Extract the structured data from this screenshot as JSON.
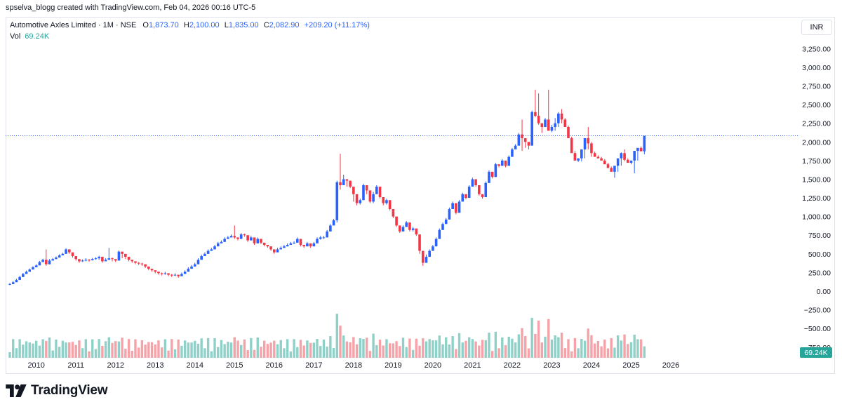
{
  "credit": "spselva_blogg created with TradingView.com, Feb 04, 2026 00:16 UTC-5",
  "legend": {
    "symbol": "Automotive Axles Limited · 1M · NSE",
    "o_label": "O",
    "o_value": "1,873.70",
    "h_label": "H",
    "h_value": "2,100.00",
    "l_label": "L",
    "l_value": "1,835.00",
    "c_label": "C",
    "c_value": "2,082.90",
    "change": "+209.20 (+11.17%)",
    "vol_label": "Vol",
    "vol_value": "69.24K"
  },
  "currency": "INR",
  "brand": "TradingView",
  "colors": {
    "up": "#2962ff",
    "down": "#f23645",
    "vol_up": "#8fd1c8",
    "vol_down": "#f5a3a8",
    "axis_text": "#131722",
    "last_price_line": "#2962ff",
    "vol_badge": "#26a69a"
  },
  "chart_data": {
    "type": "candlestick",
    "interval": "1M",
    "x_ticks": [
      "2010",
      "2011",
      "2012",
      "2013",
      "2014",
      "2015",
      "2016",
      "2017",
      "2018",
      "2019",
      "2020",
      "2021",
      "2022",
      "2023",
      "2024",
      "2025",
      "2026"
    ],
    "y_ticks": [
      "3,250.00",
      "3,000.00",
      "2,750.00",
      "2,500.00",
      "2,250.00",
      "2,000.00",
      "1,750.00",
      "1,500.00",
      "1,250.00",
      "1,000.00",
      "750.00",
      "500.00",
      "250.00",
      "0.00",
      "−250.00",
      "−500.00",
      "−750.00"
    ],
    "ylim": [
      -750,
      3250
    ],
    "last_price": 2082.9,
    "vol_last_label": "69.24K",
    "start": "2009-05",
    "closes": [
      95,
      120,
      150,
      190,
      230,
      260,
      290,
      320,
      345,
      390,
      420,
      360,
      410,
      430,
      450,
      480,
      500,
      560,
      520,
      470,
      430,
      400,
      410,
      420,
      415,
      430,
      440,
      460,
      400,
      420,
      440,
      430,
      410,
      530,
      500,
      460,
      420,
      400,
      380,
      370,
      360,
      330,
      300,
      280,
      260,
      240,
      230,
      240,
      220,
      210,
      220,
      200,
      230,
      260,
      300,
      330,
      360,
      420,
      470,
      500,
      540,
      560,
      600,
      640,
      660,
      700,
      720,
      740,
      720,
      700,
      760,
      750,
      680,
      720,
      640,
      700,
      650,
      620,
      600,
      560,
      520,
      560,
      580,
      600,
      620,
      640,
      650,
      700,
      620,
      600,
      640,
      600,
      640,
      700,
      720,
      720,
      800,
      880,
      950,
      1460,
      1420,
      1500,
      1480,
      1400,
      1300,
      1180,
      1220,
      1420,
      1350,
      1200,
      1300,
      1400,
      1260,
      1180,
      1220,
      1100,
      1000,
      880,
      800,
      860,
      920,
      820,
      840,
      760,
      540,
      380,
      460,
      540,
      600,
      700,
      820,
      900,
      960,
      1100,
      1180,
      1050,
      1200,
      1300,
      1250,
      1400,
      1500,
      1420,
      1300,
      1260,
      1450,
      1600,
      1530,
      1700,
      1680,
      1750,
      1680,
      1800,
      1900,
      1950,
      2100,
      2050,
      2000,
      1950,
      2400,
      2350,
      2250,
      2200,
      2300,
      2150,
      2200,
      2250,
      2380,
      2300,
      2200,
      2050,
      1850,
      1750,
      1780,
      1900,
      2050,
      1980,
      1850,
      1800,
      1780,
      1750,
      1700,
      1650,
      1600,
      1680,
      1780,
      1850,
      1760,
      1720,
      1750,
      1880,
      1920,
      1874,
      2083
    ],
    "highs": [
      110,
      135,
      165,
      205,
      245,
      275,
      305,
      335,
      360,
      405,
      435,
      560,
      430,
      445,
      465,
      495,
      515,
      575,
      540,
      490,
      450,
      415,
      425,
      440,
      430,
      445,
      455,
      475,
      420,
      440,
      580,
      450,
      430,
      545,
      520,
      480,
      440,
      420,
      400,
      390,
      380,
      350,
      320,
      300,
      280,
      260,
      250,
      260,
      240,
      230,
      240,
      220,
      250,
      280,
      320,
      350,
      380,
      440,
      490,
      520,
      560,
      580,
      620,
      660,
      680,
      720,
      740,
      760,
      880,
      720,
      780,
      770,
      700,
      740,
      660,
      720,
      670,
      640,
      620,
      580,
      560,
      580,
      600,
      620,
      640,
      660,
      670,
      720,
      640,
      620,
      660,
      620,
      660,
      720,
      740,
      740,
      820,
      900,
      970,
      1480,
      1840,
      1560,
      1500,
      1420,
      1340,
      1200,
      1240,
      1440,
      1370,
      1220,
      1330,
      1420,
      1280,
      1200,
      1240,
      1120,
      1020,
      900,
      820,
      880,
      940,
      850,
      860,
      790,
      580,
      420,
      490,
      560,
      620,
      720,
      840,
      920,
      980,
      1120,
      1200,
      1080,
      1220,
      1320,
      1270,
      1420,
      1520,
      1440,
      1320,
      1280,
      1470,
      1620,
      1560,
      1720,
      1700,
      1770,
      1700,
      1820,
      1920,
      1970,
      2120,
      2300,
      2030,
      1970,
      2420,
      2700,
      2650,
      2250,
      2320,
      2700,
      2230,
      2320,
      2400,
      2440,
      2320,
      2220,
      2070,
      1880,
      1780,
      1800,
      1920,
      2200,
      2000,
      1870,
      1820,
      1800,
      1770,
      1720,
      1670,
      1620,
      1720,
      1860,
      1900,
      1780,
      1740,
      1770,
      1900,
      1940,
      1900,
      2100
    ],
    "lows": [
      80,
      95,
      120,
      150,
      190,
      230,
      260,
      290,
      320,
      345,
      390,
      340,
      360,
      410,
      430,
      450,
      480,
      500,
      500,
      450,
      410,
      380,
      390,
      400,
      395,
      410,
      420,
      420,
      380,
      400,
      420,
      400,
      390,
      410,
      440,
      430,
      400,
      380,
      360,
      350,
      340,
      310,
      280,
      260,
      240,
      220,
      210,
      220,
      200,
      190,
      200,
      180,
      200,
      230,
      260,
      300,
      330,
      360,
      420,
      470,
      500,
      540,
      560,
      600,
      640,
      660,
      700,
      720,
      700,
      680,
      700,
      730,
      660,
      680,
      620,
      640,
      630,
      600,
      580,
      540,
      500,
      520,
      560,
      580,
      600,
      620,
      630,
      650,
      600,
      580,
      600,
      580,
      600,
      640,
      690,
      700,
      720,
      800,
      880,
      920,
      1360,
      1420,
      1400,
      1380,
      1200,
      1150,
      1160,
      1220,
      1300,
      1180,
      1180,
      1300,
      1240,
      1150,
      1160,
      1080,
      980,
      860,
      780,
      800,
      860,
      800,
      800,
      740,
      500,
      340,
      380,
      460,
      540,
      600,
      700,
      820,
      900,
      960,
      1100,
      1030,
      1050,
      1200,
      1230,
      1250,
      1400,
      1400,
      1280,
      1240,
      1260,
      1450,
      1510,
      1530,
      1660,
      1680,
      1660,
      1680,
      1800,
      1900,
      1950,
      1880,
      1920,
      1900,
      1950,
      2330,
      2230,
      2120,
      2200,
      2150,
      2130,
      2150,
      2200,
      2250,
      2280,
      2180,
      2030,
      1820,
      1730,
      1740,
      1780,
      1900,
      1800,
      1830,
      1780,
      1760,
      1730,
      1660,
      1610,
      1520,
      1600,
      1680,
      1740,
      1730,
      1700,
      1580,
      1750,
      1880,
      1835
    ]
  }
}
